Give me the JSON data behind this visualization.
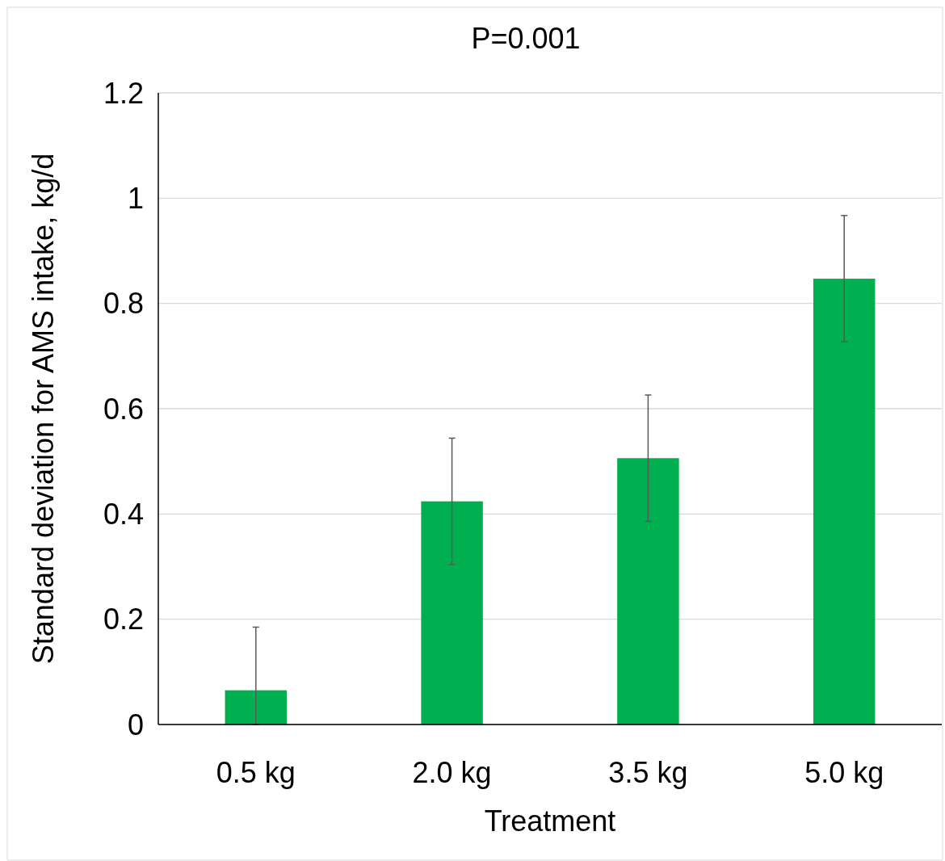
{
  "chart_data": {
    "type": "bar",
    "title": "P=0.001",
    "xlabel": "Treatment",
    "ylabel": "Standard deviation for AMS intake, kg/d",
    "categories": [
      "0.5 kg",
      "2.0 kg",
      "3.5 kg",
      "5.0 kg"
    ],
    "values": [
      0.065,
      0.424,
      0.506,
      0.847
    ],
    "errors": [
      [
        0,
        0.185
      ],
      0.12,
      0.12,
      0.12
    ],
    "color": "#00b050",
    "ylim": [
      0,
      1.2
    ],
    "yticks": [
      0,
      0.2,
      0.4,
      0.6,
      0.8,
      1,
      1.2
    ],
    "grid": "y"
  }
}
